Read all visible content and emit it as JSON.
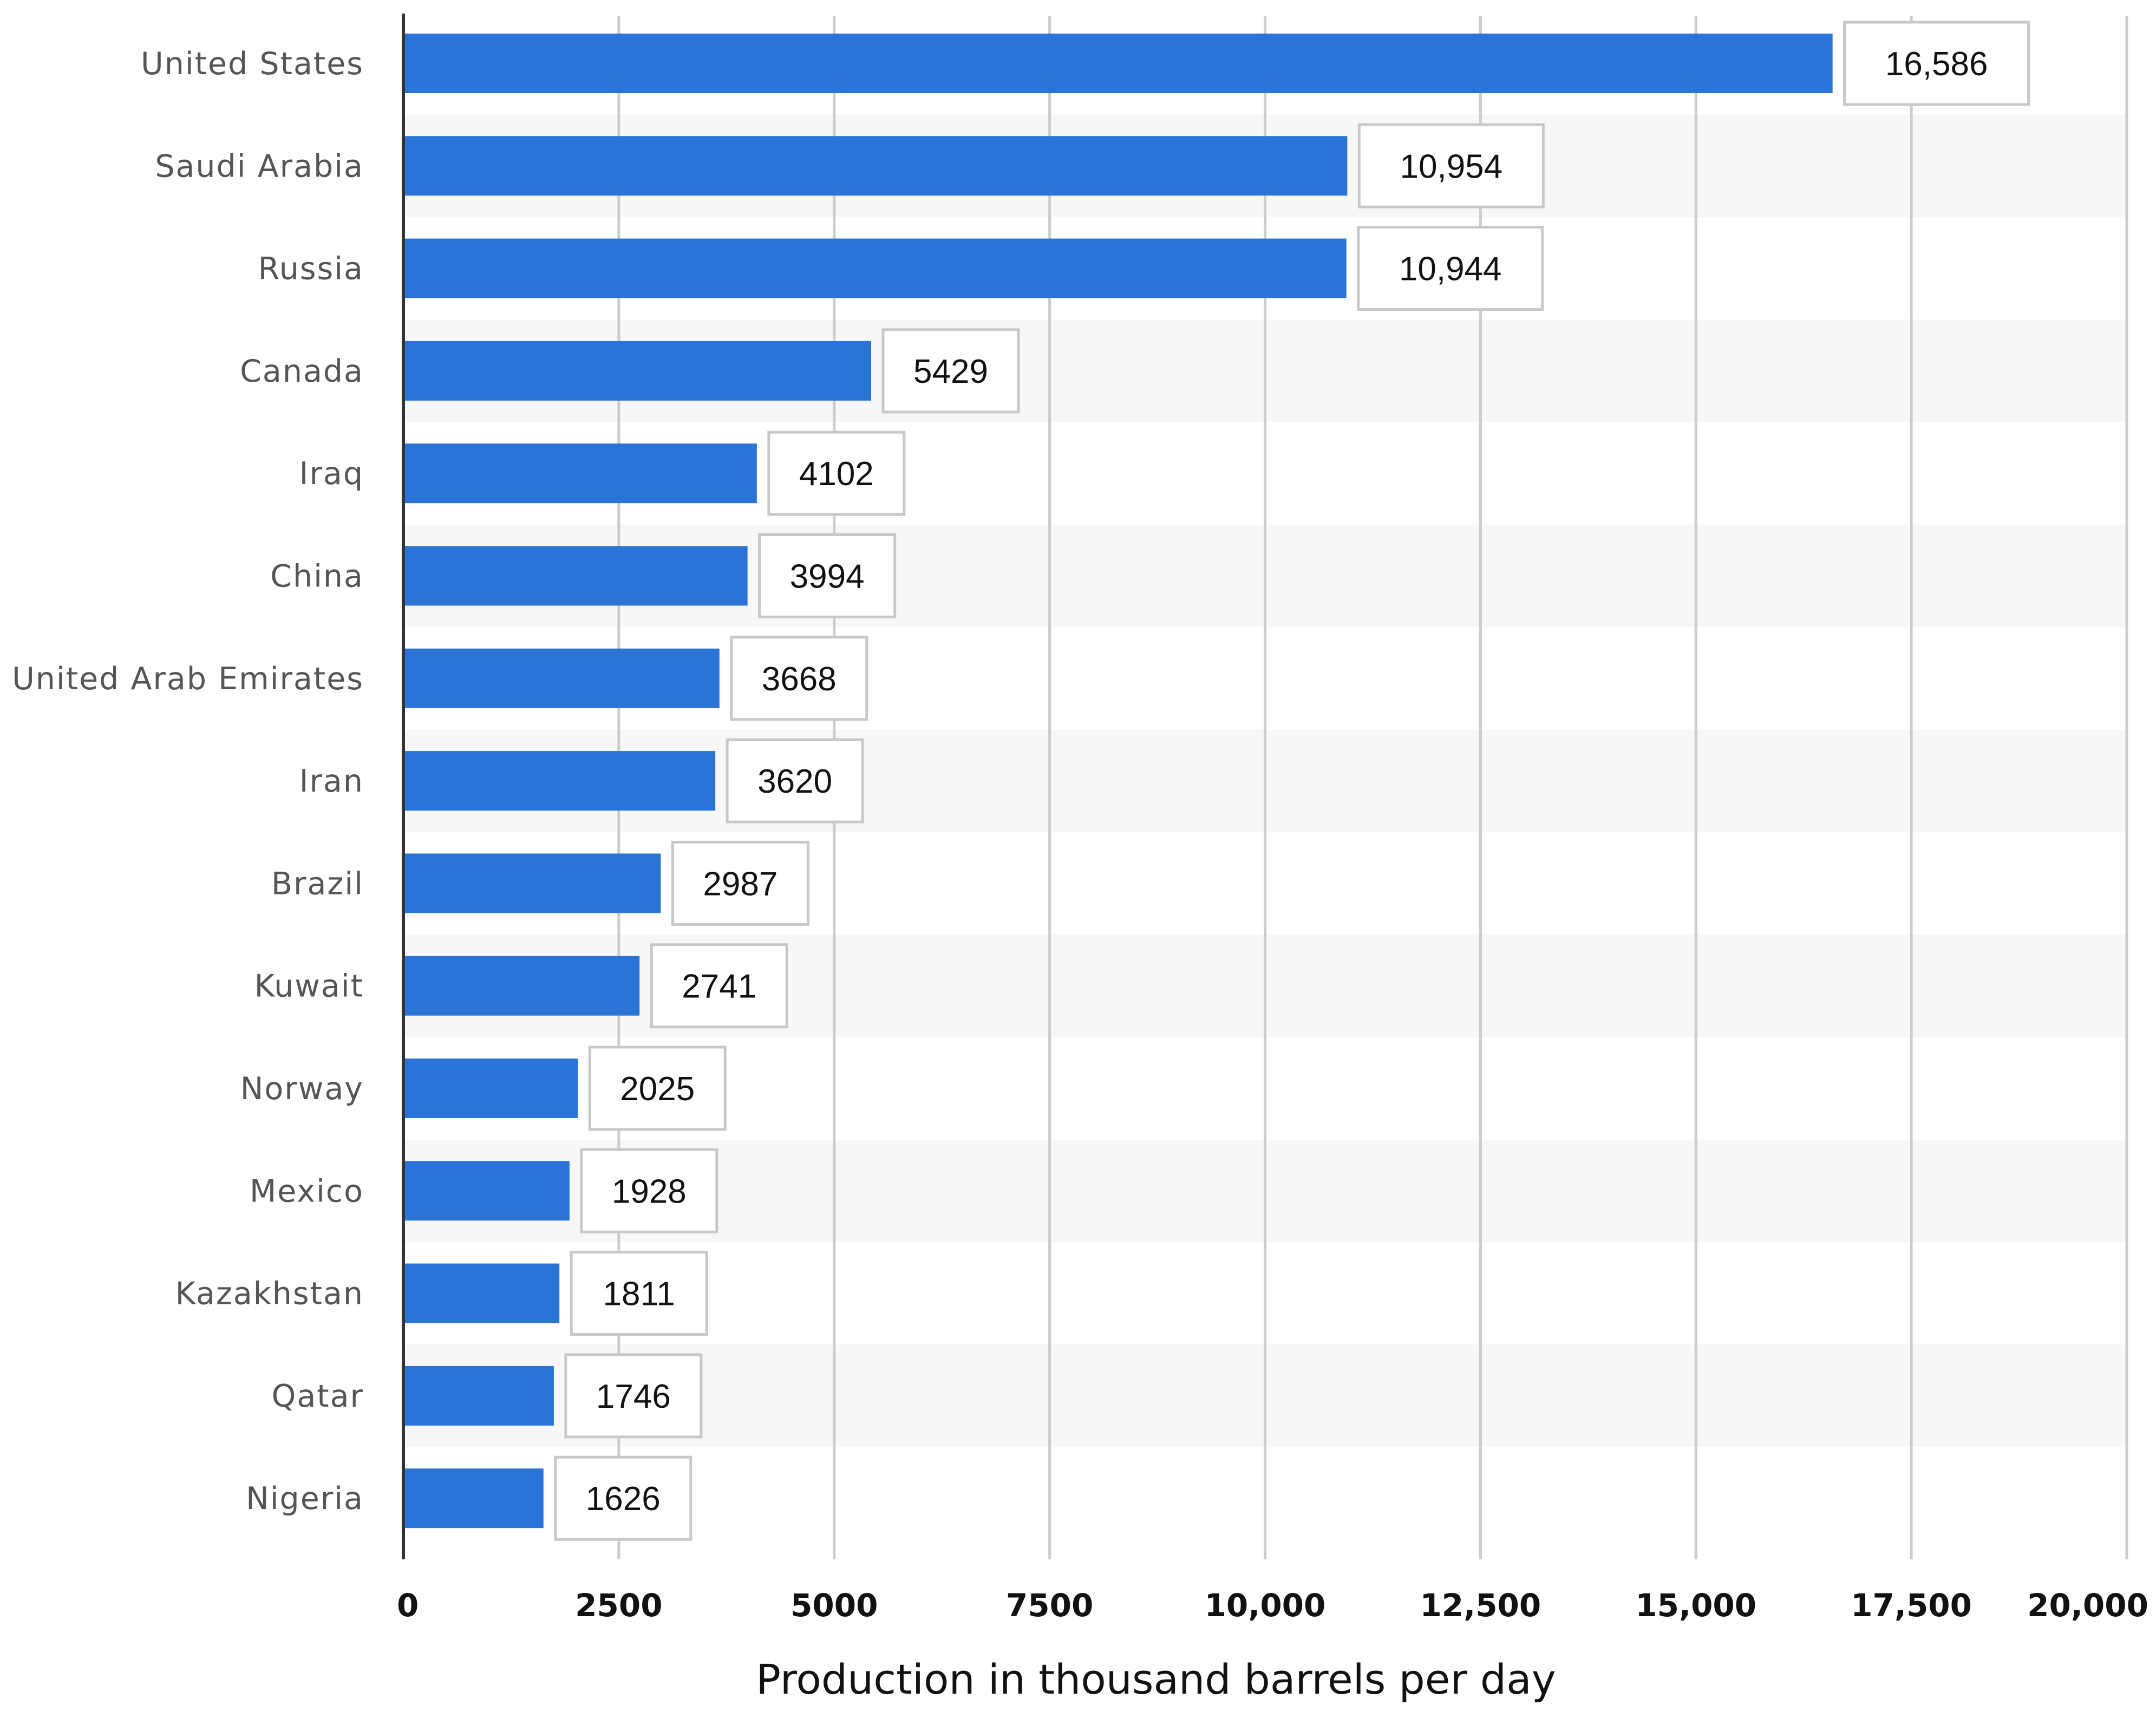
{
  "chart_data": {
    "type": "bar",
    "orientation": "horizontal",
    "categories": [
      "United States",
      "Saudi Arabia",
      "Russia",
      "Canada",
      "Iraq",
      "China",
      "United Arab Emirates",
      "Iran",
      "Brazil",
      "Kuwait",
      "Norway",
      "Mexico",
      "Kazakhstan",
      "Qatar",
      "Nigeria"
    ],
    "values": [
      16586,
      10954,
      10944,
      5429,
      4102,
      3994,
      3668,
      3620,
      2987,
      2741,
      2025,
      1928,
      1811,
      1746,
      1626
    ],
    "value_labels": [
      "16,586",
      "10,954",
      "10,944",
      "5429",
      "4102",
      "3994",
      "3668",
      "3620",
      "2987",
      "2741",
      "2025",
      "1928",
      "1811",
      "1746",
      "1626"
    ],
    "xlim": [
      0,
      20000
    ],
    "xticks": [
      0,
      2500,
      5000,
      7500,
      10000,
      12500,
      15000,
      17500,
      20000
    ],
    "xtick_labels": [
      "0",
      "2500",
      "5000",
      "7500",
      "10,000",
      "12,500",
      "15,000",
      "17,500",
      "20,000"
    ],
    "xlabel": "Production in thousand barrels per day",
    "ylabel": "",
    "title": "",
    "grid": true,
    "bar_color": "#2a74d8",
    "band_color": "#f7f7f7"
  }
}
